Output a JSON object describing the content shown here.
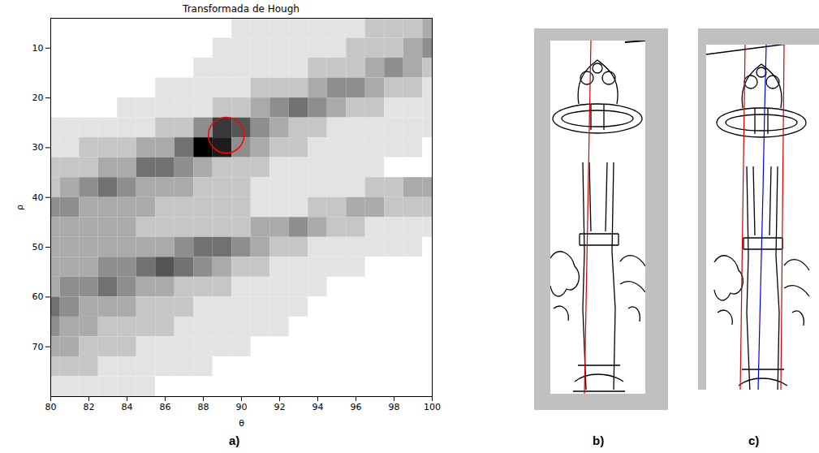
{
  "chart_data": {
    "type": "heatmap",
    "title": "Transformada de Hough",
    "x_label": "θ",
    "y_label": "ρ",
    "x": [
      80,
      81,
      82,
      83,
      84,
      85,
      86,
      87,
      88,
      89,
      90,
      91,
      92,
      93,
      94,
      95,
      96,
      97,
      98,
      99,
      100
    ],
    "y": [
      6,
      10,
      14,
      18,
      22,
      26,
      30,
      34,
      38,
      42,
      46,
      50,
      54,
      58,
      62,
      66,
      70,
      74,
      78
    ],
    "cells": [
      [
        0,
        0,
        0,
        0,
        0,
        0,
        0,
        0,
        0,
        0,
        1,
        1,
        1,
        1,
        1,
        1,
        1,
        2,
        2,
        2,
        3
      ],
      [
        0,
        0,
        0,
        0,
        0,
        0,
        0,
        0,
        0,
        1,
        1,
        1,
        1,
        1,
        1,
        1,
        2,
        2,
        2,
        3,
        4
      ],
      [
        0,
        0,
        0,
        0,
        0,
        0,
        0,
        0,
        1,
        1,
        1,
        1,
        1,
        1,
        2,
        2,
        2,
        3,
        4,
        3,
        2
      ],
      [
        0,
        0,
        0,
        0,
        0,
        0,
        1,
        1,
        1,
        1,
        1,
        2,
        2,
        2,
        3,
        4,
        4,
        3,
        2,
        2,
        1
      ],
      [
        0,
        0,
        0,
        0,
        1,
        1,
        1,
        1,
        1,
        2,
        2,
        3,
        4,
        5,
        4,
        3,
        2,
        2,
        1,
        1,
        1
      ],
      [
        1,
        1,
        1,
        1,
        1,
        1,
        2,
        2,
        4,
        7,
        6,
        4,
        3,
        2,
        2,
        1,
        1,
        1,
        1,
        1,
        1
      ],
      [
        1,
        1,
        2,
        2,
        2,
        3,
        3,
        5,
        9,
        8,
        4,
        3,
        2,
        2,
        1,
        1,
        1,
        1,
        1,
        1,
        0
      ],
      [
        2,
        2,
        2,
        3,
        3,
        5,
        5,
        4,
        3,
        2,
        2,
        2,
        1,
        1,
        1,
        1,
        1,
        1,
        0,
        0,
        0
      ],
      [
        2,
        3,
        4,
        5,
        4,
        3,
        3,
        3,
        2,
        2,
        2,
        1,
        1,
        1,
        1,
        1,
        1,
        2,
        2,
        3,
        3
      ],
      [
        4,
        4,
        3,
        3,
        3,
        3,
        2,
        2,
        2,
        2,
        2,
        1,
        1,
        1,
        2,
        2,
        3,
        3,
        2,
        2,
        2
      ],
      [
        3,
        3,
        3,
        3,
        3,
        2,
        2,
        2,
        2,
        2,
        2,
        3,
        3,
        4,
        3,
        2,
        2,
        1,
        1,
        1,
        1
      ],
      [
        3,
        3,
        3,
        3,
        3,
        3,
        3,
        4,
        5,
        5,
        4,
        3,
        2,
        2,
        1,
        1,
        1,
        1,
        1,
        1,
        0
      ],
      [
        3,
        3,
        3,
        4,
        4,
        5,
        6,
        5,
        4,
        3,
        2,
        2,
        1,
        1,
        1,
        1,
        1,
        0,
        0,
        0,
        0
      ],
      [
        3,
        4,
        4,
        5,
        4,
        3,
        3,
        2,
        2,
        2,
        1,
        1,
        1,
        1,
        1,
        0,
        0,
        0,
        0,
        0,
        0
      ],
      [
        5,
        4,
        3,
        3,
        3,
        2,
        2,
        2,
        1,
        1,
        1,
        1,
        1,
        1,
        0,
        0,
        0,
        0,
        0,
        0,
        0
      ],
      [
        4,
        3,
        3,
        2,
        2,
        2,
        2,
        1,
        1,
        1,
        1,
        1,
        1,
        0,
        0,
        0,
        0,
        0,
        0,
        0,
        0
      ],
      [
        3,
        3,
        2,
        2,
        2,
        1,
        1,
        1,
        1,
        1,
        1,
        0,
        0,
        0,
        0,
        0,
        0,
        0,
        0,
        0,
        0
      ],
      [
        2,
        2,
        2,
        1,
        1,
        1,
        1,
        1,
        1,
        0,
        0,
        0,
        0,
        0,
        0,
        0,
        0,
        0,
        0,
        0,
        0
      ],
      [
        1,
        1,
        1,
        1,
        1,
        1,
        0,
        0,
        0,
        0,
        0,
        0,
        0,
        0,
        0,
        0,
        0,
        0,
        0,
        0,
        0
      ]
    ],
    "xlim": [
      80,
      100
    ],
    "ylim": [
      4,
      80
    ],
    "xticks": [
      80,
      82,
      84,
      86,
      88,
      90,
      92,
      94,
      96,
      98,
      100
    ],
    "yticks": [
      10,
      20,
      30,
      40,
      50,
      60,
      70
    ],
    "annotations": [
      {
        "type": "circle",
        "x": 89.2,
        "y": 27.5,
        "color": "#ff0000"
      }
    ]
  },
  "panel_labels": [
    "a)",
    "b)",
    "c)"
  ]
}
